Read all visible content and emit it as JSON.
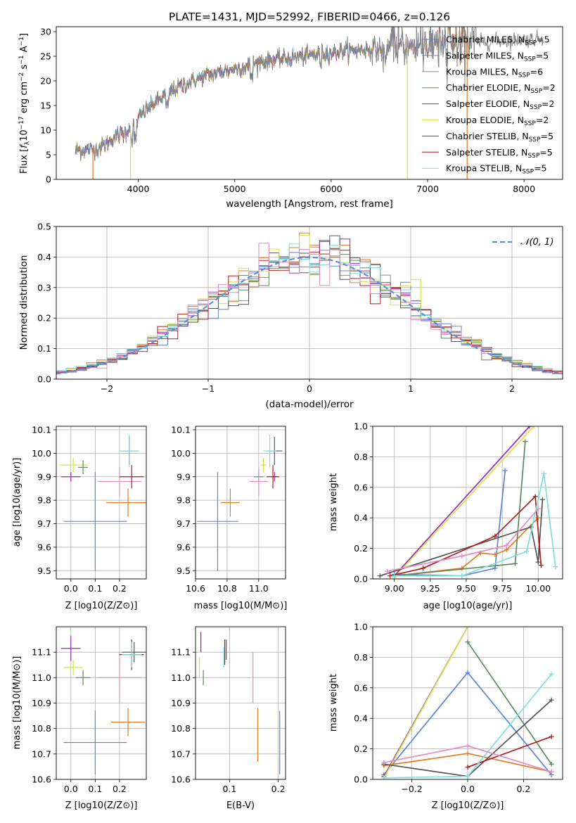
{
  "title": "PLATE=1431, MJD=52992, FIBERID=0466, z=0.126",
  "colors": {
    "chabrier_miles": "#5b85d9",
    "salpeter_miles": "#8a8a8a",
    "kroupa_miles": "#e07b27",
    "chabrier_elodie": "#5a8a5f",
    "salpeter_elodie": "#9b27b0",
    "kroupa_elodie": "#d4e34a",
    "chabrier_stelib": "#555555",
    "salpeter_stelib": "#b01c1c",
    "kroupa_stelib": "#7ddde0",
    "pink": "#e58bc3",
    "grid": "#b0b0b0",
    "dashed_normal": "#5b8fd6"
  },
  "chart_data": [
    {
      "id": "spectrum",
      "type": "line",
      "title": "PLATE=1431, MJD=52992, FIBERID=0466, z=0.126",
      "xlabel": "wavelength [Angstrom, rest frame]",
      "ylabel": "Flux [f_λ 10^-17 erg cm^-2 s^-1 A^-1]",
      "ylabel_parts": {
        "a": "Flux [",
        "b": "f",
        "c": "λ",
        "d": "10",
        "e": "−17",
        "f": " erg cm",
        "g": "−2",
        "h": " s",
        "i": "−1",
        "j": " A",
        "k": "−1",
        "l": "]"
      },
      "xlim": [
        3150,
        8400
      ],
      "ylim": [
        0,
        31
      ],
      "xticks": [
        4000,
        5000,
        6000,
        7000,
        8000
      ],
      "yticks": [
        0,
        5,
        10,
        15,
        20,
        25,
        30
      ],
      "grid": false,
      "legend_position": "top-right",
      "continuum": {
        "x": [
          3350,
          3450,
          3550,
          3650,
          3750,
          3850,
          3950,
          4050,
          4200,
          4350,
          4500,
          4700,
          4900,
          5100,
          5300,
          5500,
          5700,
          5900,
          6100,
          6300,
          6500,
          6700,
          6900,
          7100,
          7300,
          7500,
          7800,
          8100,
          8200
        ],
        "y": [
          5.8,
          6.0,
          6.2,
          7.0,
          8.5,
          9.5,
          11.0,
          13.5,
          16.0,
          18.0,
          19.5,
          21.0,
          22.0,
          23.0,
          24.0,
          24.5,
          25.0,
          25.5,
          26.0,
          26.3,
          26.5,
          26.8,
          27.0,
          27.3,
          27.6,
          27.8,
          28.2,
          28.5,
          28.6
        ]
      },
      "series": [
        {
          "name": "Chabrier MILES, N_SSP=5",
          "label": "Chabrier MILES, N",
          "nssp": "=5",
          "color": "#5b85d9"
        },
        {
          "name": "Salpeter MILES, N_SSP=5",
          "label": "Salpeter MILES, N",
          "nssp": "=5",
          "color": "#8a8a8a"
        },
        {
          "name": "Kroupa MILES, N_SSP=6",
          "label": "Kroupa MILES, N",
          "nssp": "=6",
          "color": "#e07b27"
        },
        {
          "name": "Chabrier ELODIE, N_SSP=2",
          "label": "Chabrier ELODIE, N",
          "nssp": "=2",
          "color": "#5a8a5f"
        },
        {
          "name": "Salpeter ELODIE, N_SSP=2",
          "label": "Salpeter ELODIE, N",
          "nssp": "=2",
          "color": "#9b27b0"
        },
        {
          "name": "Kroupa ELODIE, N_SSP=2",
          "label": "Kroupa ELODIE, N",
          "nssp": "=2",
          "color": "#d4e34a"
        },
        {
          "name": "Chabrier STELIB, N_SSP=5",
          "label": "Chabrier STELIB, N",
          "nssp": "=5",
          "color": "#555555"
        },
        {
          "name": "Salpeter STELIB, N_SSP=5",
          "label": "Salpeter STELIB, N",
          "nssp": "=5",
          "color": "#b01c1c"
        },
        {
          "name": "Kroupa STELIB, N_SSP=5",
          "label": "Kroupa STELIB, N",
          "nssp": "=5",
          "color": "#7ddde0"
        }
      ],
      "legend_sub": "SSP",
      "dropouts": [
        {
          "x": 3530,
          "color": "#e07b27"
        },
        {
          "x": 3920,
          "color": "#d4e34a"
        },
        {
          "x": 6790,
          "color": "#d4e34a"
        },
        {
          "x": 7410,
          "color": "#e07b27"
        }
      ]
    },
    {
      "id": "residuals",
      "type": "histogram",
      "xlabel": "(data-model)/error",
      "ylabel": "Normed distribution",
      "xlim": [
        -2.5,
        2.5
      ],
      "ylim": [
        0,
        0.5
      ],
      "xticks": [
        -2,
        -1,
        0,
        1,
        2
      ],
      "xtick_labels": [
        "−2",
        "−1",
        "0",
        "1",
        "2"
      ],
      "yticks": [
        0.0,
        0.1,
        0.2,
        0.3,
        0.4,
        0.5
      ],
      "ytick_labels": [
        "0.0",
        "0.1",
        "0.2",
        "0.3",
        "0.4",
        "0.5"
      ],
      "grid": true,
      "bin_width": 0.1,
      "legend_label": "𝒩(0, 1)",
      "legend_position": "top-right"
    },
    {
      "id": "z-age",
      "type": "scatter-errorbar",
      "xlabel": "Z [log10(Z/Z⊙)]",
      "ylabel": "age [log10(age/yr)]",
      "xlim": [
        -0.06,
        0.31
      ],
      "ylim": [
        9.465,
        10.115
      ],
      "xticks": [
        0.0,
        0.1,
        0.2
      ],
      "xtick_labels": [
        "0.0",
        "0.1",
        "0.2"
      ],
      "yticks": [
        9.5,
        9.6,
        9.7,
        9.8,
        9.9,
        10.0,
        10.1
      ],
      "ytick_labels": [
        "9.5",
        "9.6",
        "9.7",
        "9.8",
        "9.9",
        "10.0",
        "10.1"
      ],
      "points": [
        {
          "x": 0.1,
          "xerr": 0.13,
          "y": 9.71,
          "yerr": 0.21,
          "color": "#5b85d9"
        },
        {
          "x": 0.235,
          "xerr": 0.09,
          "y": 9.79,
          "yerr": 0.06,
          "color": "#e07b27"
        },
        {
          "x": 0.01,
          "xerr": 0.06,
          "y": 9.95,
          "yerr": 0.03,
          "color": "#d4e34a"
        },
        {
          "x": 0.05,
          "xerr": 0.02,
          "y": 9.94,
          "yerr": 0.03,
          "color": "#5a8a5f"
        },
        {
          "x": 0.0,
          "xerr": 0.04,
          "y": 9.9,
          "yerr": 0.02,
          "color": "#9b27b0"
        },
        {
          "x": 0.2,
          "xerr": 0.09,
          "y": 9.88,
          "yerr": 0.06,
          "color": "#e58bc3"
        },
        {
          "x": 0.25,
          "xerr": 0.05,
          "y": 9.9,
          "yerr": 0.05,
          "color": "#b01c1c"
        },
        {
          "x": 0.24,
          "xerr": 0.03,
          "y": 10.01,
          "yerr": 0.06,
          "color": "#555555"
        },
        {
          "x": 0.24,
          "xerr": 0.04,
          "y": 10.01,
          "yerr": 0.07,
          "color": "#7ddde0"
        }
      ]
    },
    {
      "id": "mass-age",
      "type": "scatter-errorbar",
      "xlabel": "mass [log10(M/M⊙)]",
      "ylabel": "",
      "xlim": [
        10.6,
        11.17
      ],
      "ylim": [
        9.465,
        10.115
      ],
      "xticks": [
        10.6,
        10.8,
        11.0
      ],
      "xtick_labels": [
        "10.6",
        "10.8",
        "11.0"
      ],
      "yticks": [
        9.5,
        9.6,
        9.7,
        9.8,
        9.9,
        10.0,
        10.1
      ],
      "ytick_labels": [
        "9.5",
        "9.6",
        "9.7",
        "9.8",
        "9.9",
        "10.0",
        "10.1"
      ],
      "points": [
        {
          "x": 10.74,
          "xerr": 0.13,
          "y": 9.71,
          "yerr": 0.21,
          "color": "#5b85d9"
        },
        {
          "x": 10.82,
          "xerr": 0.06,
          "y": 9.79,
          "yerr": 0.06,
          "color": "#e07b27"
        },
        {
          "x": 11.03,
          "xerr": 0.02,
          "y": 9.95,
          "yerr": 0.03,
          "color": "#d4e34a"
        },
        {
          "x": 11.0,
          "xerr": 0.03,
          "y": 9.9,
          "yerr": 0.02,
          "color": "#5a8a5f"
        },
        {
          "x": 11.1,
          "xerr": 0.01,
          "y": 9.9,
          "yerr": 0.02,
          "color": "#9b27b0"
        },
        {
          "x": 11.0,
          "xerr": 0.06,
          "y": 9.88,
          "yerr": 0.06,
          "color": "#e58bc3"
        },
        {
          "x": 11.09,
          "xerr": 0.04,
          "y": 9.9,
          "yerr": 0.05,
          "color": "#b01c1c"
        },
        {
          "x": 11.1,
          "xerr": 0.05,
          "y": 10.01,
          "yerr": 0.06,
          "color": "#555555"
        },
        {
          "x": 11.07,
          "xerr": 0.04,
          "y": 10.01,
          "yerr": 0.07,
          "color": "#7ddde0"
        }
      ]
    },
    {
      "id": "age-weight",
      "type": "line",
      "xlabel": "age [log10(age/yr)]",
      "ylabel": "mass weight",
      "xlim": [
        8.85,
        10.17
      ],
      "ylim": [
        0,
        1.0
      ],
      "xticks": [
        9.0,
        9.25,
        9.5,
        9.75,
        10.0
      ],
      "xtick_labels": [
        "9.00",
        "9.25",
        "9.50",
        "9.75",
        "10.00"
      ],
      "yticks": [
        0.0,
        0.2,
        0.4,
        0.6,
        0.8,
        1.0
      ],
      "ytick_labels": [
        "0.0",
        "0.2",
        "0.4",
        "0.6",
        "0.8",
        "1.0"
      ],
      "grid": true,
      "series": [
        {
          "color": "#5b85d9",
          "x": [
            9.0,
            9.47,
            9.7,
            9.77
          ],
          "y": [
            0.03,
            0.02,
            0.07,
            0.71
          ]
        },
        {
          "color": "#e07b27",
          "x": [
            9.0,
            9.47,
            9.6,
            9.7,
            9.78,
            10.0
          ],
          "y": [
            0.02,
            0.07,
            0.17,
            0.16,
            0.19,
            0.4
          ]
        },
        {
          "color": "#5a8a5f",
          "x": [
            9.0,
            9.84,
            9.91
          ],
          "y": [
            0.02,
            0.1,
            0.9
          ]
        },
        {
          "color": "#9b27b0",
          "x": [
            9.0,
            9.94
          ],
          "y": [
            0.02,
            1.0
          ]
        },
        {
          "color": "#d4e34a",
          "x": [
            9.0,
            9.97
          ],
          "y": [
            0.01,
            1.0
          ]
        },
        {
          "color": "#555555",
          "x": [
            8.9,
            9.95,
            10.0,
            10.03
          ],
          "y": [
            0.02,
            0.34,
            0.11,
            0.52
          ]
        },
        {
          "color": "#b01c1c",
          "x": [
            8.97,
            9.2,
            9.7,
            9.98,
            10.02
          ],
          "y": [
            0.02,
            0.07,
            0.28,
            0.54,
            0.09
          ]
        },
        {
          "color": "#7ddde0",
          "x": [
            9.0,
            9.47,
            9.92,
            10.04,
            10.12
          ],
          "y": [
            0.02,
            0.02,
            0.18,
            0.69,
            0.08
          ]
        },
        {
          "color": "#e58bc3",
          "x": [
            8.95,
            9.47,
            9.78,
            10.0
          ],
          "y": [
            0.05,
            0.15,
            0.22,
            0.46
          ]
        }
      ]
    },
    {
      "id": "z-mass",
      "type": "scatter-errorbar",
      "xlabel": "Z [log10(Z/Z⊙)]",
      "ylabel": "mass [log10(M/M⊙)]",
      "xlim": [
        -0.06,
        0.31
      ],
      "ylim": [
        10.6,
        11.2
      ],
      "xticks": [
        0.0,
        0.1,
        0.2
      ],
      "xtick_labels": [
        "0.0",
        "0.1",
        "0.2"
      ],
      "yticks": [
        10.6,
        10.7,
        10.8,
        10.9,
        11.0,
        11.1
      ],
      "ytick_labels": [
        "10.6",
        "10.7",
        "10.8",
        "10.9",
        "11.0",
        "11.1"
      ],
      "points": [
        {
          "x": 0.1,
          "xerr": 0.13,
          "y": 10.745,
          "yerr": 0.125,
          "color": "#5b85d9"
        },
        {
          "x": 0.235,
          "xerr": 0.07,
          "y": 10.825,
          "yerr": 0.055,
          "color": "#e07b27"
        },
        {
          "x": 0.01,
          "xerr": 0.04,
          "y": 11.04,
          "yerr": 0.03,
          "color": "#d4e34a"
        },
        {
          "x": 0.05,
          "xerr": 0.03,
          "y": 11.0,
          "yerr": 0.03,
          "color": "#5a8a5f"
        },
        {
          "x": 0.0,
          "xerr": 0.04,
          "y": 11.115,
          "yerr": 0.05,
          "color": "#9b27b0"
        },
        {
          "x": 0.2,
          "xerr": 0.09,
          "y": 11.0,
          "yerr": 0.1,
          "color": "#e58bc3"
        },
        {
          "x": 0.25,
          "xerr": 0.05,
          "y": 11.09,
          "yerr": 0.06,
          "color": "#b01c1c"
        },
        {
          "x": 0.26,
          "xerr": 0.05,
          "y": 11.1,
          "yerr": 0.04,
          "color": "#555555"
        },
        {
          "x": 0.25,
          "xerr": 0.04,
          "y": 11.09,
          "yerr": 0.05,
          "color": "#7ddde0"
        }
      ]
    },
    {
      "id": "ebv-mass",
      "type": "scatter-errorbar",
      "xlabel": "E(B-V)",
      "ylabel": "",
      "xlim": [
        0.03,
        0.215
      ],
      "ylim": [
        10.6,
        11.2
      ],
      "xticks": [
        0.1,
        0.2
      ],
      "xtick_labels": [
        "0.1",
        "0.2"
      ],
      "yticks": [
        10.6,
        10.7,
        10.8,
        10.9,
        11.0,
        11.1
      ],
      "ytick_labels": [
        "10.6",
        "10.7",
        "10.8",
        "10.9",
        "11.0",
        "11.1"
      ],
      "points": [
        {
          "x": 0.203,
          "xerr": 0.0,
          "y": 10.745,
          "yerr": 0.125,
          "color": "#5b85d9"
        },
        {
          "x": 0.158,
          "xerr": 0.0,
          "y": 10.775,
          "yerr": 0.105,
          "color": "#e07b27"
        },
        {
          "x": 0.038,
          "xerr": 0.0,
          "y": 11.04,
          "yerr": 0.04,
          "color": "#d4e34a"
        },
        {
          "x": 0.046,
          "xerr": 0.0,
          "y": 11.0,
          "yerr": 0.03,
          "color": "#5a8a5f"
        },
        {
          "x": 0.041,
          "xerr": 0.0,
          "y": 11.14,
          "yerr": 0.04,
          "color": "#9b27b0"
        },
        {
          "x": 0.148,
          "xerr": 0.0,
          "y": 11.0,
          "yerr": 0.1,
          "color": "#e58bc3"
        },
        {
          "x": 0.09,
          "xerr": 0.0,
          "y": 11.1,
          "yerr": 0.05,
          "color": "#b01c1c"
        },
        {
          "x": 0.093,
          "xerr": 0.0,
          "y": 11.11,
          "yerr": 0.04,
          "color": "#555555"
        },
        {
          "x": 0.088,
          "xerr": 0.0,
          "y": 11.08,
          "yerr": 0.04,
          "color": "#7ddde0"
        }
      ]
    },
    {
      "id": "z-weight",
      "type": "line",
      "xlabel": "Z [log10(Z/Z⊙)]",
      "ylabel": "mass weight",
      "xlim": [
        -0.34,
        0.34
      ],
      "ylim": [
        0,
        1.0
      ],
      "xticks": [
        -0.2,
        0.0,
        0.2
      ],
      "xtick_labels": [
        "−0.2",
        "0.0",
        "0.2"
      ],
      "yticks": [
        0.0,
        0.2,
        0.4,
        0.6,
        0.8,
        1.0
      ],
      "ytick_labels": [
        "0.0",
        "0.2",
        "0.4",
        "0.6",
        "0.8",
        "1.0"
      ],
      "grid": true,
      "series": [
        {
          "color": "#5b85d9",
          "x": [
            -0.3,
            0.0,
            0.3
          ],
          "y": [
            0.03,
            0.7,
            0.03
          ]
        },
        {
          "color": "#e07b27",
          "x": [
            -0.3,
            0.0,
            0.3
          ],
          "y": [
            0.09,
            0.17,
            0.05
          ]
        },
        {
          "color": "#5a8a5f",
          "x": [
            0.0,
            0.3
          ],
          "y": [
            0.9,
            0.1
          ]
        },
        {
          "color": "#9b27b0",
          "x": [
            -0.3,
            0.0
          ],
          "y": [
            0.02,
            1.0
          ]
        },
        {
          "color": "#d4e34a",
          "x": [
            -0.3,
            0.0
          ],
          "y": [
            0.01,
            1.0
          ]
        },
        {
          "color": "#555555",
          "x": [
            -0.3,
            0.0,
            0.3
          ],
          "y": [
            0.1,
            0.02,
            0.52
          ]
        },
        {
          "color": "#b01c1c",
          "x": [
            0.0,
            0.3
          ],
          "y": [
            0.08,
            0.28
          ]
        },
        {
          "color": "#7ddde0",
          "x": [
            -0.3,
            0.0,
            0.3
          ],
          "y": [
            0.01,
            0.02,
            0.69
          ]
        },
        {
          "color": "#e58bc3",
          "x": [
            -0.3,
            0.0,
            0.3
          ],
          "y": [
            0.11,
            0.22,
            0.05
          ]
        }
      ]
    }
  ]
}
